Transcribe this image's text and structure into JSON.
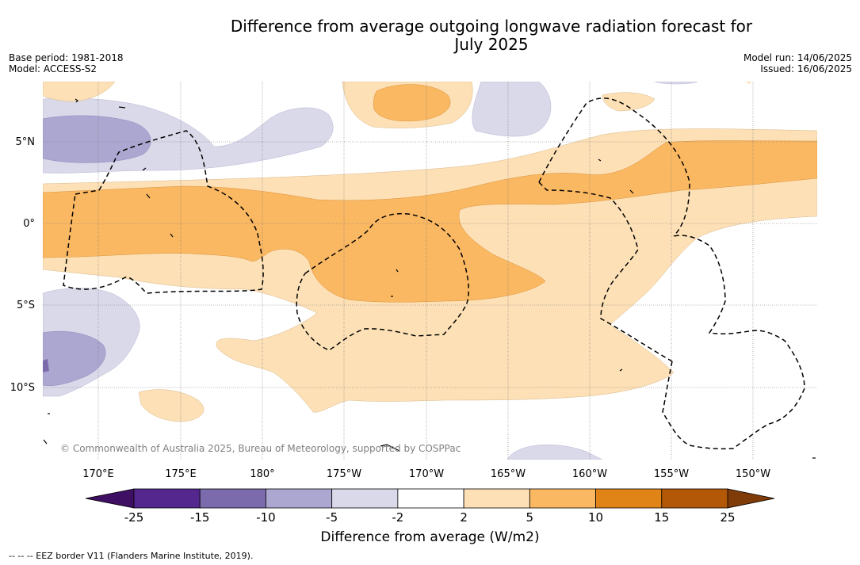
{
  "title_line1": "Difference from average outgoing longwave radiation forecast for",
  "title_line2": "July 2025",
  "meta": {
    "base_period": "Base period: 1981-2018",
    "model": "Model: ACCESS-S2",
    "model_run": "Model run: 14/06/2025",
    "issued": "Issued: 16/06/2025"
  },
  "axes": {
    "lon_labels": [
      "170°E",
      "175°E",
      "180°",
      "175°W",
      "170°W",
      "165°W",
      "160°W",
      "155°W",
      "150°W"
    ],
    "lat_labels": [
      "5°N",
      "0°",
      "5°S",
      "10°S"
    ]
  },
  "copyright": "© Commonwealth of Australia 2025, Bureau of Meteorology, supported by COSPPac",
  "colorbar": {
    "title": "Difference from average (W/m2)",
    "ticks": [
      "-25",
      "-15",
      "-10",
      "-5",
      "-2",
      "2",
      "5",
      "10",
      "15",
      "25"
    ],
    "colors": [
      "#3f0f63",
      "#54278f",
      "#7b6bad",
      "#aca7d0",
      "#d9d9ea",
      "#ffffff",
      "#fde0b6",
      "#fbb862",
      "#e08418",
      "#b35806",
      "#7f3b08"
    ]
  },
  "footer": "-- -- -- EEZ border V11 (Flanders Marine Institute, 2019)."
}
